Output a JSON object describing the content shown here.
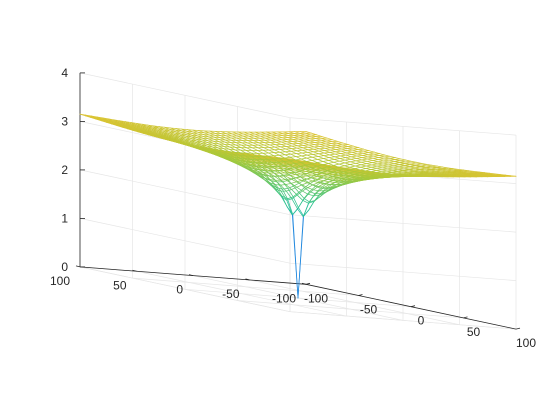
{
  "chart_data": {
    "type": "surface-mesh",
    "title": "",
    "xlabel": "",
    "ylabel": "",
    "zlabel": "",
    "xlim": [
      -100,
      100
    ],
    "ylim": [
      -100,
      100
    ],
    "zlim": [
      0,
      4
    ],
    "x_ticks": [
      -100,
      -50,
      0,
      50,
      100
    ],
    "y_ticks": [
      -100,
      -50,
      0,
      50,
      100
    ],
    "z_ticks": [
      0,
      1,
      2,
      3,
      4
    ],
    "x_tick_labels": [
      "-100",
      "-50",
      "0",
      "50",
      "100"
    ],
    "y_tick_labels": [
      "-100",
      "-50",
      "0",
      "50",
      "100"
    ],
    "z_tick_labels": [
      "0",
      "1",
      "2",
      "3",
      "4"
    ],
    "grid": true,
    "colormap": "parula",
    "colormap_stops": [
      "#3e26a8",
      "#2d7de8",
      "#14b0c7",
      "#35c58c",
      "#a7c93a",
      "#f1c12e",
      "#f9fb0e"
    ],
    "surface_formula": "z = log10(sqrt(x^2 + y^2)) + 1",
    "grid_samples": 41,
    "sample_range": [
      -100,
      100
    ]
  }
}
